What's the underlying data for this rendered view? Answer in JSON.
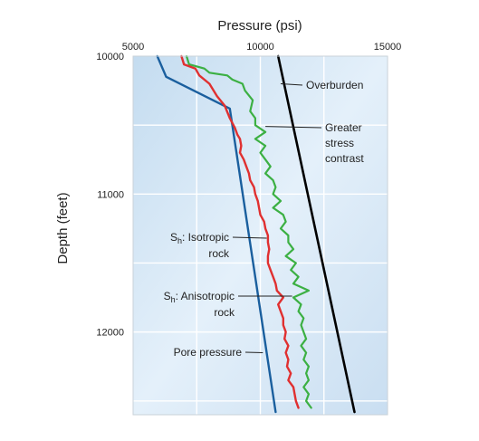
{
  "chart_data": {
    "type": "line",
    "title": "",
    "xlabel": "Pressure (psi)",
    "ylabel": "Depth (feet)",
    "xlim": [
      5000,
      15000
    ],
    "ylim": [
      10000,
      12600
    ],
    "y_inverted": true,
    "x_axis_position": "top",
    "x_ticks": [
      5000,
      10000,
      15000
    ],
    "x_tick_labels": [
      "5000",
      "10000",
      "15000"
    ],
    "y_ticks": [
      10000,
      11000,
      12000
    ],
    "y_tick_labels": [
      "10000",
      "11000",
      "12000"
    ],
    "grid": true,
    "background": "light blue gradient",
    "series": [
      {
        "key": "pore",
        "color": "#1a5f9e",
        "points": [
          [
            5950,
            10000
          ],
          [
            6300,
            10150
          ],
          [
            8800,
            10380
          ],
          [
            10600,
            12580
          ]
        ]
      },
      {
        "key": "overburden",
        "color": "#000000",
        "points": [
          [
            10700,
            10000
          ],
          [
            13700,
            12580
          ]
        ]
      },
      {
        "key": "isotropic",
        "color": "#e03030",
        "points": [
          [
            6900,
            10000
          ],
          [
            7000,
            10060
          ],
          [
            7450,
            10090
          ],
          [
            7600,
            10140
          ],
          [
            8000,
            10200
          ],
          [
            8300,
            10290
          ],
          [
            8600,
            10360
          ],
          [
            8800,
            10450
          ],
          [
            9000,
            10520
          ],
          [
            9100,
            10570
          ],
          [
            9200,
            10600
          ],
          [
            9250,
            10650
          ],
          [
            9200,
            10700
          ],
          [
            9350,
            10750
          ],
          [
            9450,
            10800
          ],
          [
            9550,
            10850
          ],
          [
            9600,
            10900
          ],
          [
            9750,
            10950
          ],
          [
            9800,
            11000
          ],
          [
            9900,
            11050
          ],
          [
            9950,
            11100
          ],
          [
            10000,
            11150
          ],
          [
            10150,
            11200
          ],
          [
            10200,
            11250
          ],
          [
            10300,
            11300
          ],
          [
            10300,
            11350
          ],
          [
            10350,
            11400
          ],
          [
            10300,
            11450
          ],
          [
            10300,
            11500
          ],
          [
            10400,
            11550
          ],
          [
            10500,
            11600
          ],
          [
            10600,
            11650
          ],
          [
            10650,
            11700
          ],
          [
            10900,
            11750
          ],
          [
            10700,
            11800
          ],
          [
            10800,
            11850
          ],
          [
            10900,
            11900
          ],
          [
            10900,
            11950
          ],
          [
            11000,
            12000
          ],
          [
            10950,
            12050
          ],
          [
            11100,
            12100
          ],
          [
            11000,
            12150
          ],
          [
            11100,
            12200
          ],
          [
            11050,
            12250
          ],
          [
            11200,
            12300
          ],
          [
            11100,
            12350
          ],
          [
            11300,
            12400
          ],
          [
            11350,
            12450
          ],
          [
            11400,
            12500
          ],
          [
            11500,
            12550
          ]
        ]
      },
      {
        "key": "anisotropic",
        "color": "#3cb043",
        "points": [
          [
            7100,
            10000
          ],
          [
            7200,
            10060
          ],
          [
            7800,
            10090
          ],
          [
            8000,
            10120
          ],
          [
            8700,
            10140
          ],
          [
            8900,
            10170
          ],
          [
            9300,
            10200
          ],
          [
            9400,
            10250
          ],
          [
            9700,
            10320
          ],
          [
            9600,
            10400
          ],
          [
            9800,
            10450
          ],
          [
            9800,
            10500
          ],
          [
            10200,
            10550
          ],
          [
            9800,
            10600
          ],
          [
            10200,
            10650
          ],
          [
            10000,
            10700
          ],
          [
            10200,
            10750
          ],
          [
            10400,
            10800
          ],
          [
            10200,
            10850
          ],
          [
            10500,
            10900
          ],
          [
            10600,
            10950
          ],
          [
            10500,
            11000
          ],
          [
            10800,
            11050
          ],
          [
            10500,
            11100
          ],
          [
            10900,
            11150
          ],
          [
            11000,
            11200
          ],
          [
            10800,
            11250
          ],
          [
            11100,
            11300
          ],
          [
            11100,
            11350
          ],
          [
            11300,
            11400
          ],
          [
            11000,
            11450
          ],
          [
            11400,
            11500
          ],
          [
            11200,
            11550
          ],
          [
            11500,
            11600
          ],
          [
            11300,
            11650
          ],
          [
            11900,
            11700
          ],
          [
            11300,
            11750
          ],
          [
            11600,
            11800
          ],
          [
            11500,
            11850
          ],
          [
            11700,
            11900
          ],
          [
            11600,
            11950
          ],
          [
            11700,
            12000
          ],
          [
            11800,
            12050
          ],
          [
            11600,
            12100
          ],
          [
            11800,
            12150
          ],
          [
            11700,
            12200
          ],
          [
            11900,
            12250
          ],
          [
            11800,
            12300
          ],
          [
            11900,
            12350
          ],
          [
            11700,
            12400
          ],
          [
            11900,
            12450
          ],
          [
            11800,
            12500
          ],
          [
            12000,
            12550
          ]
        ]
      }
    ],
    "annotations": [
      {
        "key": "overburden",
        "text": "Overburden",
        "target": [
          10800,
          10200
        ]
      },
      {
        "key": "stress",
        "lines": [
          "Greater",
          "stress",
          "contrast"
        ],
        "target": [
          10200,
          10510
        ]
      },
      {
        "key": "isotropic",
        "prefix": "S",
        "subscript": "h",
        "suffix": ": Isotropic",
        "line2": "rock",
        "target": [
          10250,
          11320
        ]
      },
      {
        "key": "anisotropic",
        "prefix": "S",
        "subscript": "h",
        "suffix": ": Anisotropic",
        "line2": "rock",
        "target": [
          11250,
          11740
        ]
      },
      {
        "key": "pore",
        "text": "Pore pressure",
        "target": [
          10100,
          12150
        ]
      }
    ]
  }
}
